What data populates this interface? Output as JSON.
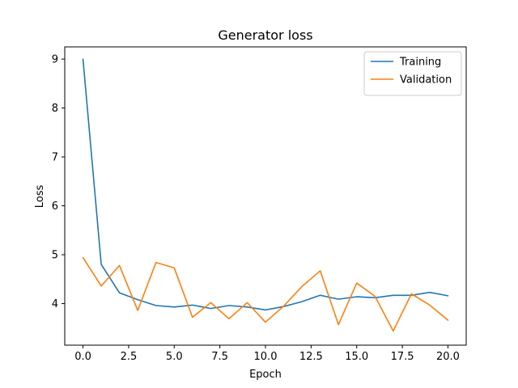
{
  "chart_data": {
    "type": "line",
    "title": "Generator loss",
    "xlabel": "Epoch",
    "ylabel": "Loss",
    "xlim": [
      -1.0,
      21.0
    ],
    "ylim": [
      3.15,
      9.25
    ],
    "xticks": [
      0.0,
      2.5,
      5.0,
      7.5,
      10.0,
      12.5,
      15.0,
      17.5,
      20.0
    ],
    "xtick_labels": [
      "0.0",
      "2.5",
      "5.0",
      "7.5",
      "10.0",
      "12.5",
      "15.0",
      "17.5",
      "20.0"
    ],
    "yticks": [
      4,
      5,
      6,
      7,
      8,
      9
    ],
    "ytick_labels": [
      "4",
      "5",
      "6",
      "7",
      "8",
      "9"
    ],
    "grid": false,
    "legend_position": "top-right",
    "x": [
      0,
      1,
      2,
      3,
      4,
      5,
      6,
      7,
      8,
      9,
      10,
      11,
      12,
      13,
      14,
      15,
      16,
      17,
      18,
      19,
      20
    ],
    "series": [
      {
        "name": "Training",
        "color": "#1f77b4",
        "values": [
          9.0,
          4.8,
          4.22,
          4.08,
          3.96,
          3.93,
          3.97,
          3.9,
          3.96,
          3.93,
          3.87,
          3.94,
          4.04,
          4.17,
          4.09,
          4.14,
          4.12,
          4.17,
          4.17,
          4.23,
          4.16
        ]
      },
      {
        "name": "Validation",
        "color": "#ff7f0e",
        "values": [
          4.94,
          4.36,
          4.78,
          3.86,
          4.84,
          4.73,
          3.72,
          4.02,
          3.69,
          4.02,
          3.62,
          3.95,
          4.35,
          4.67,
          3.57,
          4.42,
          4.15,
          3.44,
          4.2,
          3.97,
          3.66
        ]
      }
    ]
  }
}
